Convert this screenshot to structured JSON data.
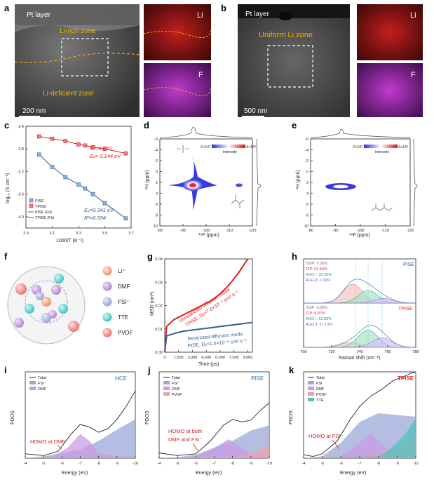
{
  "panels": {
    "a": {
      "letter": "a",
      "pt_label": "Pt layer",
      "rich": "Li-rich zone",
      "deficient": "Li-deficient zone",
      "scale": "200 nm",
      "map_li": "Li",
      "map_f": "F"
    },
    "b": {
      "letter": "b",
      "pt_label": "Pt layer",
      "uniform": "Uniform Li zone",
      "scale": "500 nm",
      "map_li": "Li",
      "map_f": "F"
    },
    "c": {
      "letter": "c",
      "xlabel": "1000/T (K⁻¹)",
      "ylabel": "log₁₀ (S cm⁻¹)",
      "r2_tpise": "R²=0.970",
      "ea_tpise": "Eₐ= 0.144 eV",
      "ea_pise": "Eₐ=0.341 eV",
      "r2_pise": "R²=0.994",
      "legend": [
        "PISE",
        "TPISE",
        "PISE (Fit)",
        "TPISE (Fit)"
      ]
    },
    "d": {
      "letter": "d",
      "xlabel": "¹⁹F (ppm)",
      "ylabel": "¹H (ppm)",
      "cbar_lo": "2×10⁵",
      "cbar_hi": "4×10⁶",
      "cbar_label": "intensity"
    },
    "e": {
      "letter": "e",
      "xlabel": "¹⁹F (ppm)",
      "ylabel": "¹H (ppm)",
      "cbar_lo": "2×10⁵",
      "cbar_hi": "4×10⁶",
      "cbar_label": "intensity"
    },
    "f": {
      "letter": "f",
      "legend": [
        "Li⁺",
        "DMF",
        "FSI⁻",
        "TTE",
        "PVDF"
      ],
      "colors": [
        "#f08a5d",
        "#b07ad8",
        "#8f9fd6",
        "#2ec4c0",
        "#f06a6a"
      ]
    },
    "g": {
      "letter": "g",
      "xlabel": "Time (ps)",
      "ylabel": "MSD (nm²)",
      "tpise_mode": "Unrestricted diffusion mode",
      "tpise_eq": "TPISE, Dₗᵢ=7.6×10⁻⁸ cm² s⁻¹",
      "pise_mode": "Restricted diffusion mode",
      "pise_eq": "PISE, Dₗᵢ=1.6×10⁻⁸ cm² s⁻¹"
    },
    "h": {
      "letter": "h",
      "xlabel": "Raman shift (cm⁻¹)",
      "pise": {
        "name": "PISE",
        "lines": [
          "SSIP: 0.36%",
          "CIP: 61.64%",
          "AGG Ⅰ: 35.00%",
          "AGG Ⅱ: 2.99%"
        ]
      },
      "tpise": {
        "name": "TPISE",
        "lines": [
          "SSIP: 0.00%",
          "CIP: 9.97%",
          "AGG Ⅰ: 62.89%",
          "AGG Ⅱ: 27.13%"
        ]
      }
    },
    "i": {
      "letter": "i",
      "name": "HCE",
      "legend": [
        "Total",
        "FSI⁻",
        "DMF"
      ],
      "homo": "HOMO at DMF",
      "xlabel": "Energy (eV)",
      "ylabel": "PDOS"
    },
    "j": {
      "letter": "j",
      "name": "PISE",
      "legend": [
        "Total",
        "FSI⁻",
        "DMF",
        "PVDF"
      ],
      "homo1": "HOMO at both",
      "homo2": "DMF and FSI⁻",
      "xlabel": "Energy (eV)",
      "ylabel": "PDOS"
    },
    "k": {
      "letter": "k",
      "name": "TPISE",
      "legend": [
        "Total",
        "FSI",
        "DMF",
        "PVDF",
        "TTE"
      ],
      "homo": "HOMO at FSI⁻",
      "xlabel": "Energy (eV)",
      "ylabel": "PDOS"
    }
  },
  "chart_data": [
    {
      "id": "c",
      "type": "scatter",
      "title": "",
      "xlabel": "1000/T (K⁻¹)",
      "ylabel": "log₁₀ (S cm⁻¹)",
      "xlim": [
        2.9,
        3.7
      ],
      "ylim": [
        -4.2,
        -2.4
      ],
      "xticks": [
        "2.9",
        "3.1",
        "3.3",
        "3.5",
        "3.7"
      ],
      "yticks": [
        "-2.4",
        "-2.8",
        "-3.2",
        "-3.6",
        "-4.0"
      ],
      "series": [
        {
          "name": "PISE",
          "x": [
            3.0,
            3.1,
            3.2,
            3.3,
            3.35,
            3.41,
            3.5,
            3.66
          ],
          "y": [
            -2.9,
            -3.12,
            -3.3,
            -3.43,
            -3.5,
            -3.6,
            -3.76,
            -4.03
          ]
        },
        {
          "name": "TPISE",
          "x": [
            3.0,
            3.1,
            3.2,
            3.3,
            3.35,
            3.41,
            3.5,
            3.66
          ],
          "y": [
            -2.58,
            -2.62,
            -2.66,
            -2.72,
            -2.74,
            -2.77,
            -2.8,
            -2.88
          ]
        }
      ]
    },
    {
      "id": "g",
      "type": "line",
      "xlabel": "Time (ps)",
      "ylabel": "MSD (nm²)",
      "xlim": [
        0,
        9500
      ],
      "ylim": [
        0,
        0.04
      ],
      "xticks": [
        "0",
        "1,500",
        "3,000",
        "4,500",
        "6,000",
        "7,500",
        "9,000"
      ],
      "yticks": [
        "0.00",
        "0.01",
        "0.02",
        "0.03",
        "0.04"
      ],
      "series": [
        {
          "name": "TPISE",
          "x": [
            0,
            200,
            1000,
            2000,
            3000,
            4000,
            5000,
            6000,
            7000,
            8000,
            9000
          ],
          "y": [
            0,
            0.011,
            0.014,
            0.016,
            0.018,
            0.02,
            0.022,
            0.025,
            0.029,
            0.034,
            0.04
          ]
        },
        {
          "name": "PISE",
          "x": [
            0,
            200,
            1000,
            2000,
            3000,
            4000,
            5000,
            6000,
            7000,
            8000,
            9500
          ],
          "y": [
            0,
            0.007,
            0.008,
            0.009,
            0.0095,
            0.01,
            0.0105,
            0.011,
            0.0115,
            0.012,
            0.0128
          ]
        }
      ]
    },
    {
      "id": "h",
      "type": "line",
      "xlabel": "Raman shift (cm⁻¹)",
      "xlim": [
        700,
        780
      ],
      "xticks": [
        "700",
        "720",
        "740",
        "760",
        "780"
      ],
      "series": [
        {
          "name": "PISE CIP",
          "center": 735,
          "height": 0.6
        },
        {
          "name": "PISE AGG I",
          "center": 746,
          "height": 0.4
        },
        {
          "name": "PISE AGG II",
          "center": 757,
          "height": 0.15
        },
        {
          "name": "TPISE CIP",
          "center": 733,
          "height": 0.15
        },
        {
          "name": "TPISE AGG I",
          "center": 746,
          "height": 0.55
        },
        {
          "name": "TPISE AGG II",
          "center": 756,
          "height": 0.3
        }
      ]
    },
    {
      "id": "i",
      "type": "area",
      "xlabel": "Energy (eV)",
      "ylabel": "PDOS",
      "xlim": [
        -4,
        -10
      ],
      "xticks": [
        "-4",
        "-5",
        "-6",
        "-7",
        "-8",
        "-9",
        "-10"
      ]
    },
    {
      "id": "j",
      "type": "area",
      "xlabel": "Energy (eV)",
      "ylabel": "PDOS",
      "xlim": [
        -4,
        -10
      ],
      "xticks": [
        "-4",
        "-5",
        "-6",
        "-7",
        "-8",
        "-9",
        "-10"
      ]
    },
    {
      "id": "k",
      "type": "area",
      "xlabel": "Energy (eV)",
      "ylabel": "PDOS",
      "xlim": [
        -4,
        -10
      ],
      "xticks": [
        "-4",
        "-5",
        "-6",
        "-7",
        "-8",
        "-9",
        "-10"
      ]
    },
    {
      "id": "d",
      "type": "heatmap",
      "xlabel": "¹⁹F (ppm)",
      "ylabel": "¹H (ppm)",
      "xlim": [
        -80,
        -120
      ],
      "ylim": [
        -6,
        10
      ],
      "xticks": [
        "-80",
        "-90",
        "-100",
        "-110",
        "-120"
      ],
      "yticks": [
        "-6",
        "-4",
        "-2",
        "0",
        "2",
        "4",
        "6",
        "8",
        "10"
      ]
    },
    {
      "id": "e",
      "type": "heatmap",
      "xlabel": "¹⁹F (ppm)",
      "ylabel": "¹H (ppm)",
      "xlim": [
        -80,
        -120
      ],
      "ylim": [
        -6,
        10
      ],
      "xticks": [
        "-80",
        "-90",
        "-100",
        "-110",
        "-120"
      ],
      "yticks": [
        "-6",
        "-4",
        "-2",
        "0",
        "2",
        "4",
        "6",
        "8",
        "10"
      ]
    }
  ]
}
